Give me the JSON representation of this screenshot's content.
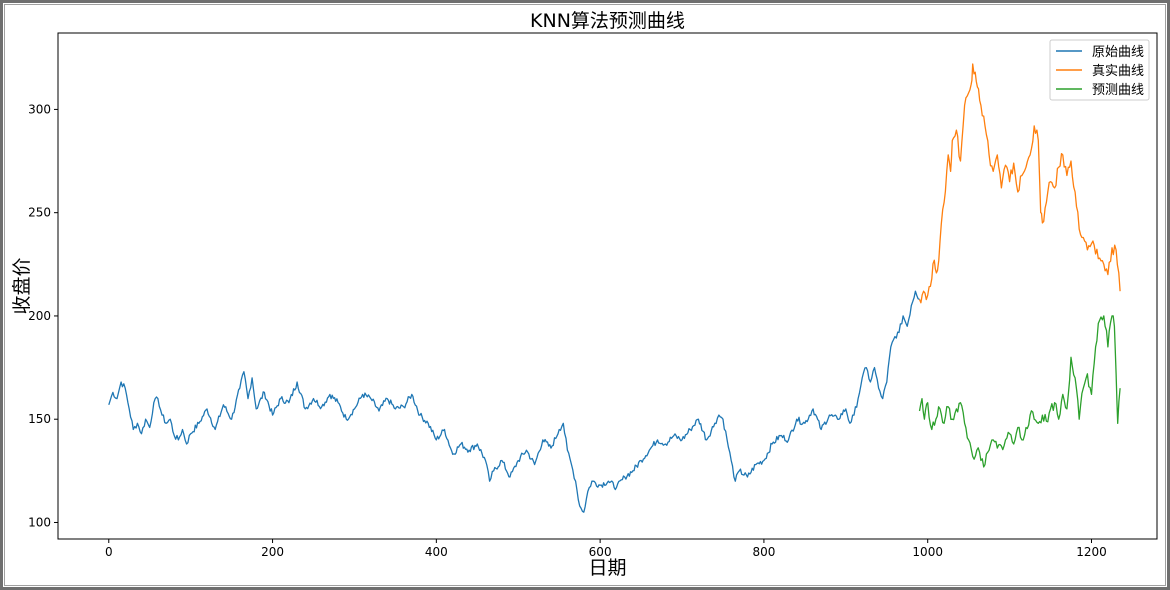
{
  "chart_data": {
    "type": "line",
    "title": "KNN算法预测曲线",
    "xlabel": "日期",
    "ylabel": "收盘价",
    "xlim": [
      -62,
      1280
    ],
    "ylim": [
      92,
      337
    ],
    "xticks": [
      0,
      200,
      400,
      600,
      800,
      1000,
      1200
    ],
    "yticks": [
      100,
      150,
      200,
      250,
      300
    ],
    "grid": false,
    "legend": "top-right",
    "series": [
      {
        "name": "原始曲线",
        "color": "#1f77b4",
        "x": [
          0,
          5,
          10,
          15,
          20,
          25,
          30,
          35,
          40,
          45,
          50,
          55,
          60,
          65,
          70,
          75,
          80,
          85,
          90,
          95,
          100,
          110,
          120,
          130,
          140,
          150,
          160,
          165,
          170,
          175,
          180,
          190,
          200,
          210,
          220,
          230,
          240,
          250,
          260,
          270,
          280,
          290,
          300,
          310,
          320,
          330,
          340,
          350,
          360,
          370,
          380,
          390,
          400,
          410,
          420,
          430,
          440,
          450,
          460,
          465,
          470,
          480,
          490,
          500,
          510,
          520,
          530,
          540,
          550,
          555,
          560,
          565,
          570,
          575,
          580,
          585,
          590,
          600,
          610,
          620,
          630,
          640,
          650,
          660,
          670,
          680,
          690,
          700,
          710,
          720,
          730,
          740,
          745,
          750,
          755,
          760,
          765,
          770,
          780,
          790,
          800,
          810,
          820,
          830,
          840,
          850,
          860,
          870,
          880,
          890,
          900,
          905,
          910,
          915,
          920,
          925,
          930,
          935,
          940,
          945,
          950,
          955,
          960,
          965,
          970,
          975,
          980,
          985,
          990
        ],
        "y": [
          157,
          163,
          160,
          168,
          165,
          155,
          145,
          148,
          143,
          150,
          146,
          158,
          160,
          152,
          148,
          150,
          142,
          140,
          145,
          138,
          143,
          148,
          155,
          145,
          157,
          150,
          165,
          173,
          160,
          170,
          155,
          163,
          152,
          160,
          158,
          168,
          155,
          160,
          156,
          162,
          158,
          150,
          155,
          162,
          160,
          154,
          160,
          155,
          156,
          162,
          152,
          148,
          140,
          145,
          133,
          138,
          135,
          138,
          130,
          120,
          125,
          130,
          122,
          130,
          135,
          128,
          140,
          136,
          145,
          148,
          135,
          128,
          120,
          108,
          105,
          115,
          120,
          118,
          120,
          117,
          122,
          125,
          130,
          135,
          140,
          138,
          142,
          140,
          145,
          150,
          140,
          148,
          152,
          150,
          140,
          130,
          120,
          125,
          122,
          128,
          130,
          138,
          142,
          140,
          150,
          148,
          155,
          145,
          152,
          150,
          155,
          148,
          152,
          160,
          170,
          175,
          168,
          175,
          165,
          160,
          168,
          185,
          190,
          192,
          200,
          195,
          205,
          212,
          208
        ]
      },
      {
        "name": "真实曲线",
        "color": "#ff7f0e",
        "x": [
          990,
          995,
          1000,
          1005,
          1008,
          1012,
          1015,
          1020,
          1025,
          1028,
          1030,
          1035,
          1040,
          1045,
          1050,
          1053,
          1055,
          1058,
          1062,
          1065,
          1070,
          1075,
          1080,
          1085,
          1090,
          1095,
          1100,
          1105,
          1110,
          1115,
          1120,
          1125,
          1130,
          1135,
          1138,
          1140,
          1145,
          1150,
          1155,
          1160,
          1165,
          1170,
          1175,
          1180,
          1185,
          1190,
          1195,
          1200,
          1205,
          1210,
          1215,
          1220,
          1225,
          1230,
          1235
        ],
        "y": [
          208,
          212,
          210,
          218,
          227,
          222,
          236,
          255,
          278,
          270,
          285,
          290,
          275,
          302,
          308,
          312,
          322,
          318,
          310,
          302,
          292,
          278,
          270,
          278,
          262,
          273,
          265,
          274,
          260,
          268,
          272,
          278,
          292,
          285,
          250,
          245,
          255,
          265,
          262,
          272,
          278,
          268,
          275,
          260,
          242,
          238,
          232,
          235,
          230,
          228,
          225,
          220,
          233,
          232,
          212
        ]
      },
      {
        "name": "预测曲线",
        "color": "#2ca02c",
        "x": [
          990,
          993,
          996,
          1000,
          1005,
          1010,
          1015,
          1020,
          1025,
          1030,
          1035,
          1040,
          1045,
          1050,
          1055,
          1060,
          1065,
          1070,
          1075,
          1080,
          1085,
          1090,
          1095,
          1100,
          1105,
          1110,
          1115,
          1120,
          1125,
          1130,
          1135,
          1140,
          1145,
          1150,
          1155,
          1160,
          1165,
          1170,
          1175,
          1180,
          1185,
          1190,
          1195,
          1200,
          1205,
          1210,
          1215,
          1220,
          1225,
          1228,
          1230,
          1232,
          1235
        ],
        "y": [
          154,
          160,
          150,
          158,
          145,
          150,
          155,
          148,
          156,
          150,
          155,
          158,
          148,
          140,
          132,
          135,
          130,
          128,
          135,
          140,
          136,
          137,
          140,
          143,
          138,
          146,
          140,
          146,
          152,
          150,
          148,
          152,
          149,
          155,
          158,
          150,
          162,
          155,
          180,
          170,
          150,
          165,
          172,
          162,
          185,
          198,
          200,
          185,
          200,
          195,
          172,
          148,
          165
        ]
      }
    ]
  }
}
